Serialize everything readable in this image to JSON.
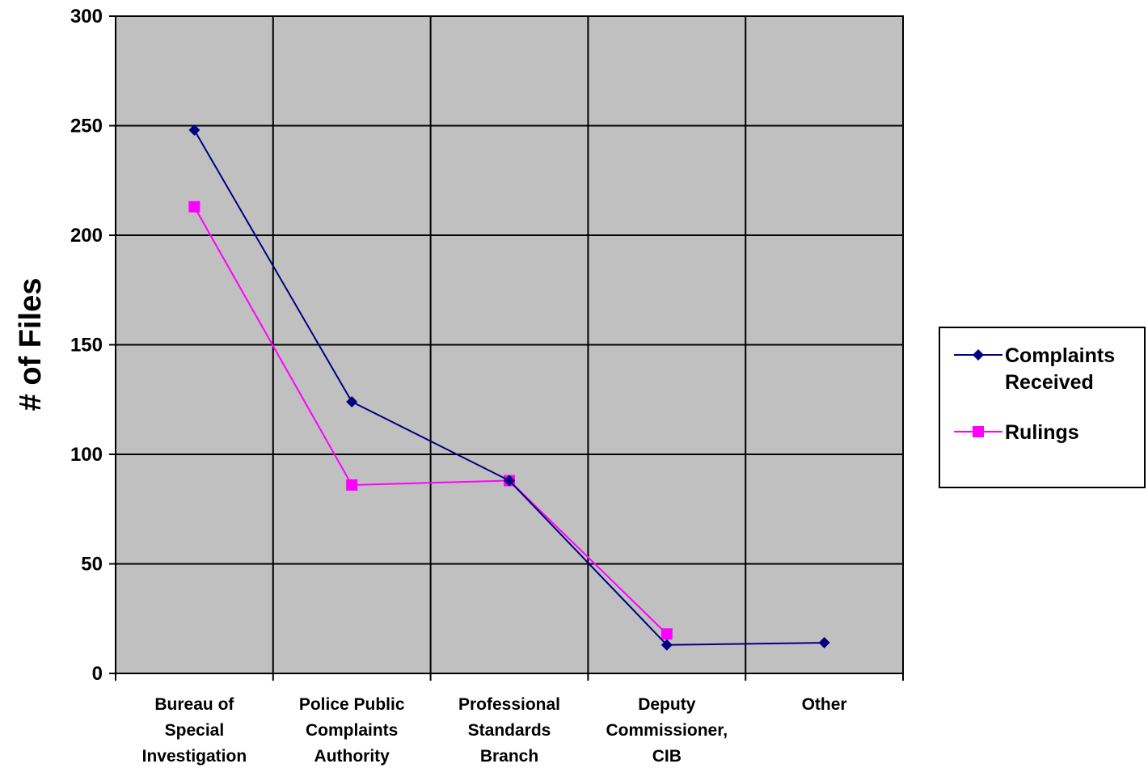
{
  "chart_data": {
    "type": "line",
    "title": "",
    "xlabel": "",
    "ylabel": "# of Files",
    "ylim": [
      0,
      300
    ],
    "y_ticks": [
      0,
      50,
      100,
      150,
      200,
      250,
      300
    ],
    "categories": [
      [
        "Bureau of",
        "Special",
        "Investigation"
      ],
      [
        "Police Public",
        "Complaints",
        "Authority"
      ],
      [
        "Professional",
        "Standards",
        "Branch"
      ],
      [
        "Deputy",
        "Commissioner,",
        "CIB"
      ],
      [
        "Other"
      ]
    ],
    "series": [
      {
        "name": [
          "Complaints",
          "Received"
        ],
        "color": "#000080",
        "marker": "diamond",
        "values": [
          248,
          124,
          88,
          13,
          14
        ]
      },
      {
        "name": [
          "Rulings"
        ],
        "color": "#FF00FF",
        "marker": "square",
        "values": [
          213,
          86,
          88,
          18,
          null
        ]
      }
    ],
    "grid": true,
    "plot_background": "#C0C0C0",
    "legend": "right"
  }
}
